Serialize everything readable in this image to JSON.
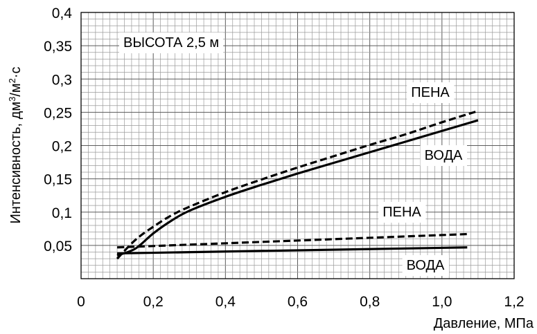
{
  "chart_data": {
    "type": "line",
    "title": "",
    "xlabel": "Давление, МПа",
    "ylabel_main": "Интенсивность, дм",
    "ylabel_sup1": "3",
    "ylabel_mid": "/м",
    "ylabel_sup2": "2",
    "ylabel_end": "·с",
    "xlim": [
      0,
      1.2
    ],
    "ylim": [
      0,
      0.4
    ],
    "x_ticks": [
      0,
      0.2,
      0.4,
      0.6,
      0.8,
      1.0,
      1.2
    ],
    "x_tick_labels": [
      "0",
      "0,2",
      "0,4",
      "0,6",
      "0,8",
      "1,0",
      "1,2"
    ],
    "y_ticks": [
      0.05,
      0.1,
      0.15,
      0.2,
      0.25,
      0.3,
      0.35,
      0.4
    ],
    "y_tick_labels": [
      "0,05",
      "0,1",
      "0,15",
      "0,2",
      "0,25",
      "0,3",
      "0,35",
      "0,4"
    ],
    "grid": true,
    "series": [
      {
        "name": "ПЕНА",
        "style": "dashed",
        "x": [
          0.1,
          0.15,
          0.2,
          0.25,
          0.3,
          0.4,
          0.5,
          0.6,
          0.7,
          0.8,
          0.9,
          1.0,
          1.1
        ],
        "y": [
          0.03,
          0.058,
          0.078,
          0.095,
          0.108,
          0.13,
          0.149,
          0.167,
          0.184,
          0.201,
          0.217,
          0.235,
          0.252
        ]
      },
      {
        "name": "ВОДА",
        "style": "solid",
        "x": [
          0.1,
          0.15,
          0.2,
          0.25,
          0.3,
          0.4,
          0.5,
          0.6,
          0.7,
          0.8,
          0.9,
          1.0,
          1.1
        ],
        "y": [
          0.035,
          0.045,
          0.068,
          0.087,
          0.102,
          0.123,
          0.141,
          0.158,
          0.174,
          0.19,
          0.206,
          0.222,
          0.238
        ]
      },
      {
        "name": "ПЕНА",
        "style": "dashed",
        "x": [
          0.1,
          1.07
        ],
        "y": [
          0.047,
          0.067
        ]
      },
      {
        "name": "ВОДА",
        "style": "solid",
        "x": [
          0.1,
          1.07
        ],
        "y": [
          0.038,
          0.047
        ]
      }
    ],
    "annotations": [
      {
        "text": "ВЫСОТА  2,5 м"
      },
      {
        "text": "ПЕНА"
      },
      {
        "text": "ВОДА"
      },
      {
        "text": "ПЕНА"
      },
      {
        "text": "ВОДА"
      }
    ]
  }
}
